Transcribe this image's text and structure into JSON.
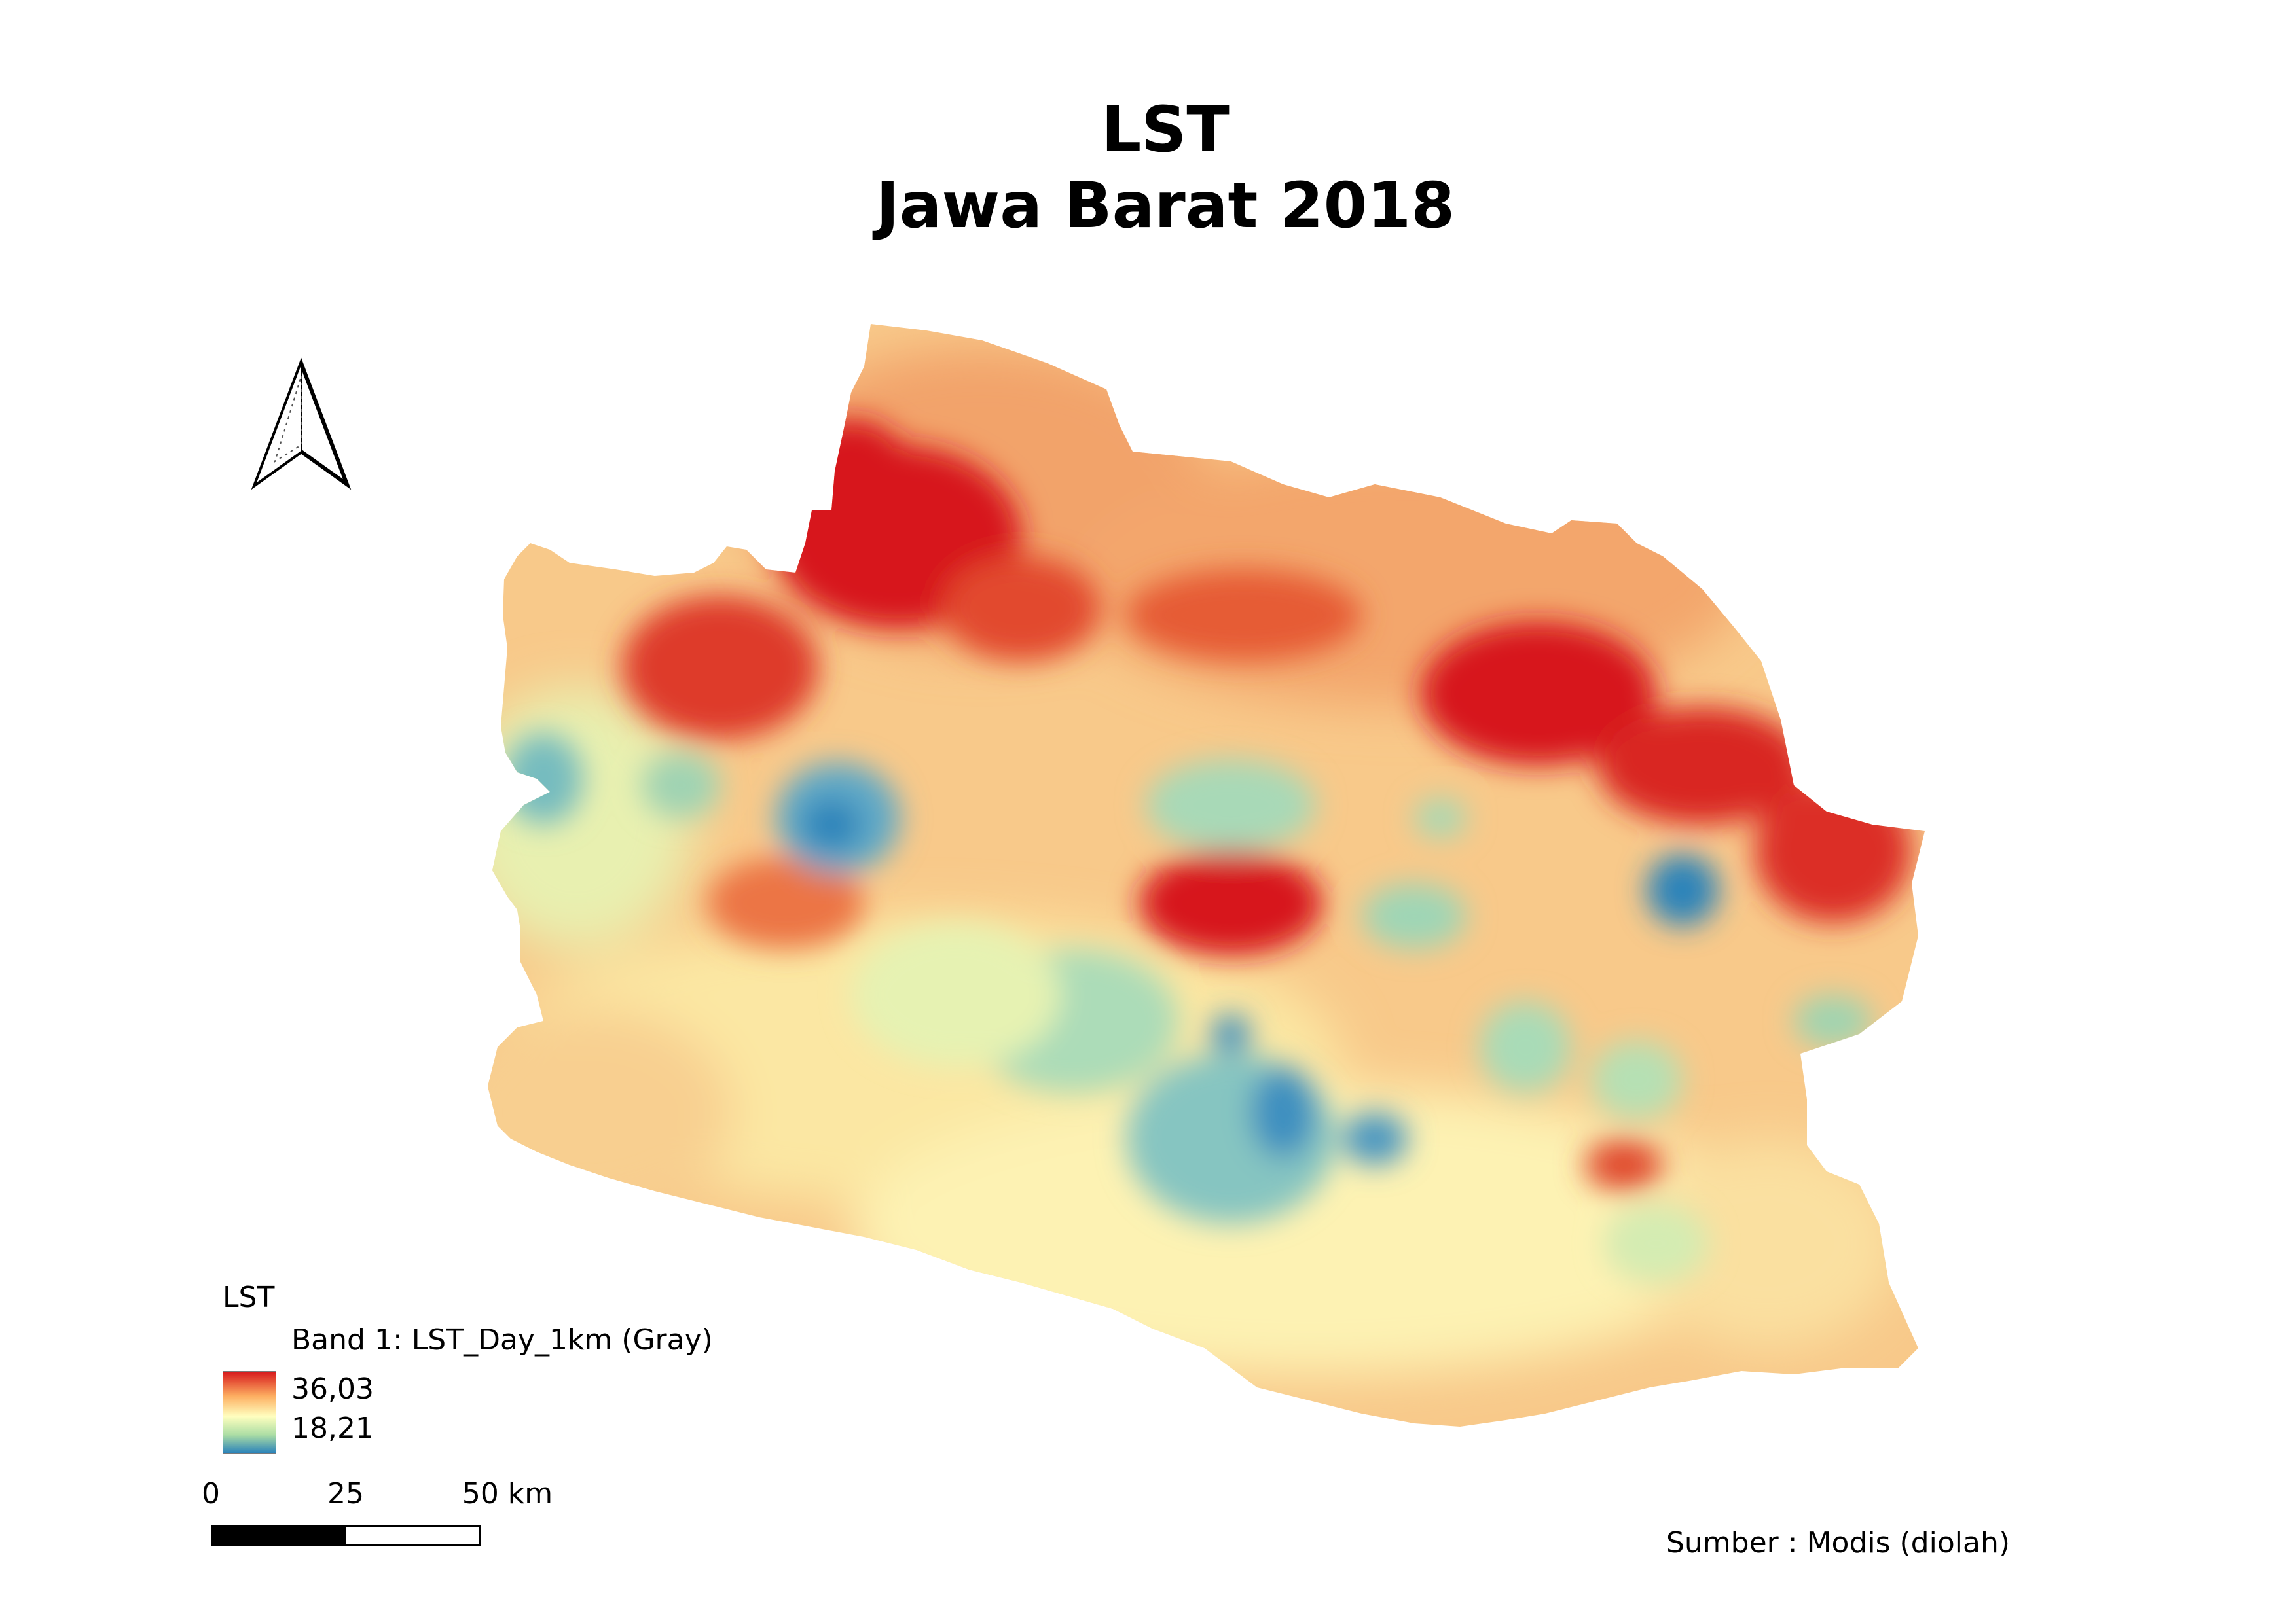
{
  "map": {
    "title_line1": "LST",
    "title_line2": "Jawa Barat 2018",
    "region": "Jawa Barat",
    "colors": {
      "hot": "#d7191c",
      "warm": "#fdae61",
      "mid": "#ffffbf",
      "cool": "#abdda4",
      "cold": "#2b83ba"
    }
  },
  "north_arrow": {
    "icon": "north-arrow-icon"
  },
  "legend": {
    "title": "LST",
    "band_label": "Band 1: LST_Day_1km (Gray)",
    "max_label": "36,03",
    "min_label": "18,21",
    "max_value": 36.03,
    "min_value": 18.21
  },
  "scalebar": {
    "labels": [
      "0",
      "25",
      "50 km"
    ],
    "unit": "km"
  },
  "source": {
    "text": "Sumber : Modis (diolah)"
  }
}
